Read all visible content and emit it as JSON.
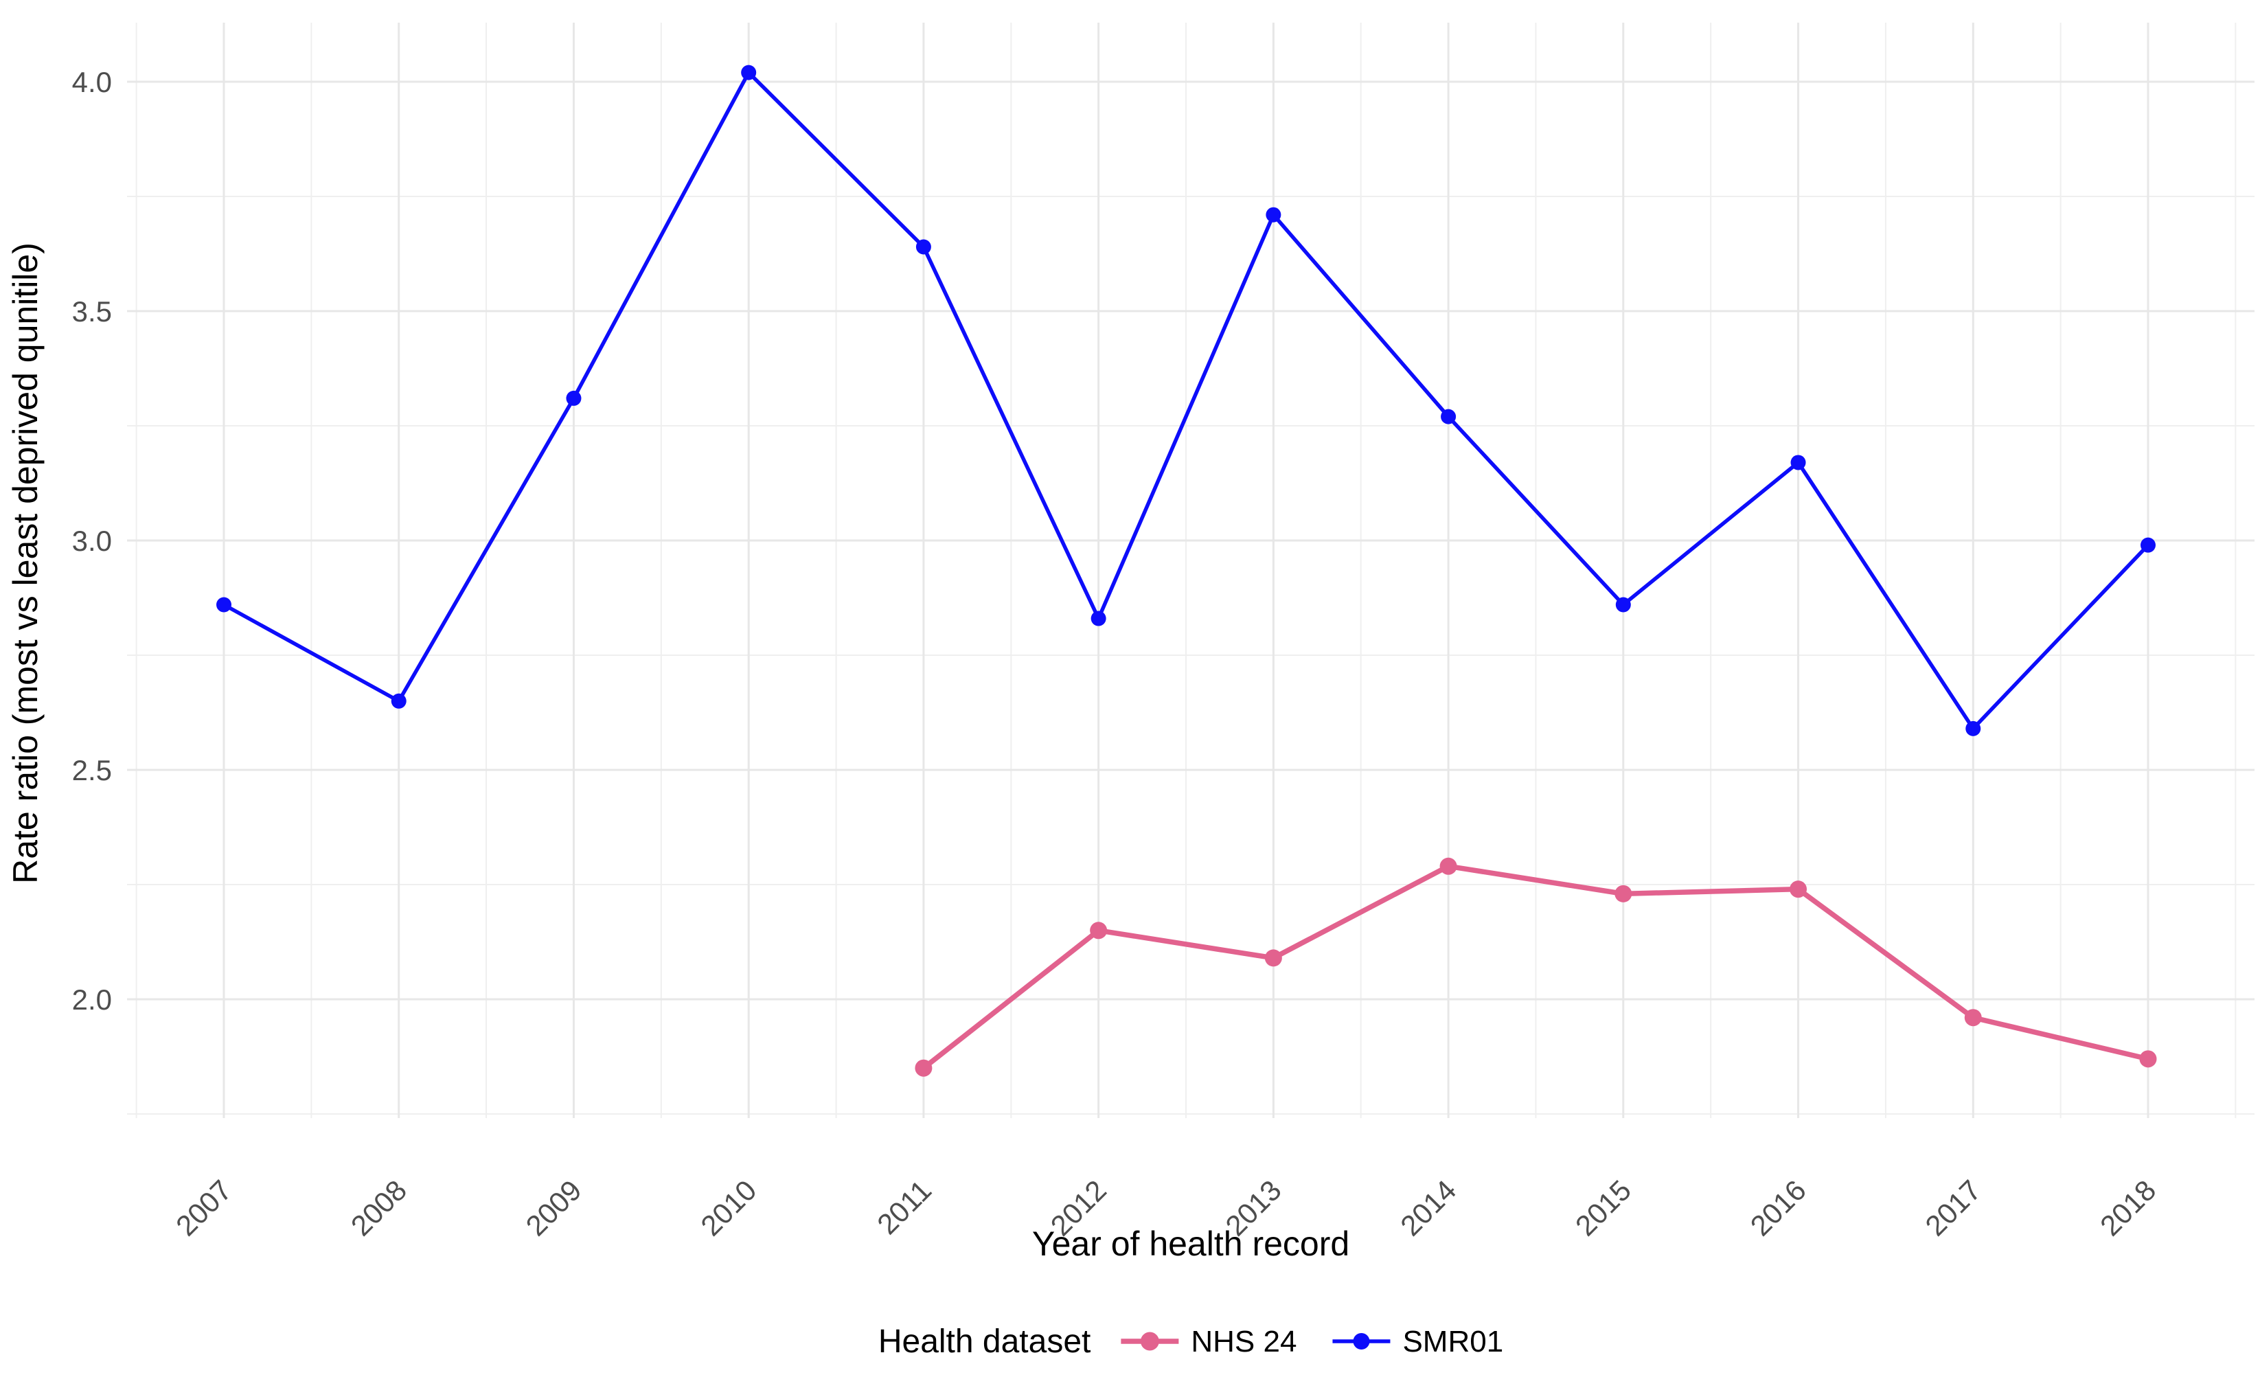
{
  "figure": {
    "background": "#ffffff",
    "y_axis": {
      "title": "Rate ratio (most vs least deprived qunitile)",
      "tick_labels": [
        "2.0",
        "2.5",
        "3.0",
        "3.5",
        "4.0"
      ]
    },
    "x_axis": {
      "title": "Year of health record",
      "tick_labels": [
        "2007",
        "2008",
        "2009",
        "2010",
        "2011",
        "2012",
        "2013",
        "2014",
        "2015",
        "2016",
        "2017",
        "2018"
      ]
    },
    "legend": {
      "title": "Health dataset",
      "items": [
        {
          "label": "NHS 24",
          "color": "#E2628E"
        },
        {
          "label": "SMR01",
          "color": "#0D0DFA"
        }
      ]
    },
    "colors": {
      "grid_major": "#E7E7E7",
      "grid_minor": "#EFEFEF",
      "tick_text": "#4D4D4D",
      "title_text": "#000000"
    }
  },
  "chart_data": {
    "type": "line",
    "title": "",
    "xlabel": "Year of health record",
    "ylabel": "Rate ratio (most vs least deprived qunitile)",
    "categories": [
      "2007",
      "2008",
      "2009",
      "2010",
      "2011",
      "2012",
      "2013",
      "2014",
      "2015",
      "2016",
      "2017",
      "2018"
    ],
    "series": [
      {
        "name": "NHS 24",
        "color": "#E2628E",
        "x": [
          2011,
          2012,
          2013,
          2014,
          2015,
          2016,
          2017,
          2018
        ],
        "values": [
          1.85,
          2.15,
          2.09,
          2.29,
          2.23,
          2.24,
          1.96,
          1.87
        ],
        "line_width": 7.5,
        "point_radius": 12.5
      },
      {
        "name": "SMR01",
        "color": "#0D0DFA",
        "x": [
          2007,
          2008,
          2009,
          2010,
          2011,
          2012,
          2013,
          2014,
          2015,
          2016,
          2017,
          2018
        ],
        "values": [
          2.86,
          2.65,
          3.31,
          4.02,
          3.64,
          2.83,
          3.71,
          3.27,
          2.86,
          3.17,
          2.59,
          2.99
        ],
        "line_width": 5.5,
        "point_radius": 11
      }
    ],
    "x_range": [
      2007,
      2018
    ],
    "ylim": [
      1.74,
      4.13
    ],
    "y_major_ticks": [
      2.0,
      2.5,
      3.0,
      3.5,
      4.0
    ],
    "y_minor_ticks": [
      1.75,
      2.25,
      2.75,
      3.25,
      3.75
    ],
    "grid": true,
    "legend_position": "bottom"
  }
}
